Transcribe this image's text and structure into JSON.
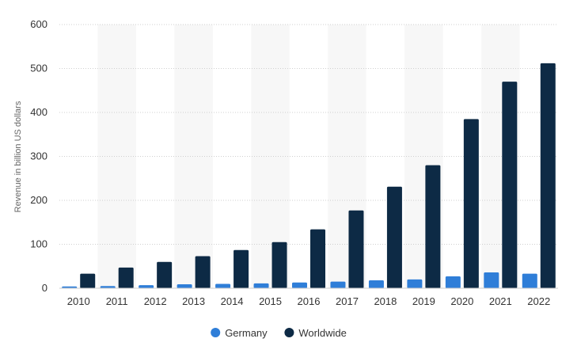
{
  "chart_data": {
    "type": "bar",
    "categories": [
      "2010",
      "2011",
      "2012",
      "2013",
      "2014",
      "2015",
      "2016",
      "2017",
      "2018",
      "2019",
      "2020",
      "2021",
      "2022"
    ],
    "series": [
      {
        "name": "Germany",
        "color": "#2f7ed8",
        "values": [
          4,
          5,
          7,
          9,
          10,
          11,
          13,
          15,
          18,
          20,
          27,
          36,
          33
        ]
      },
      {
        "name": "Worldwide",
        "color": "#0d2a45",
        "values": [
          33,
          47,
          60,
          73,
          87,
          105,
          134,
          177,
          231,
          280,
          385,
          470,
          512
        ]
      }
    ],
    "ylabel": "Revenue in billion US dollars",
    "ylim": [
      0,
      600
    ],
    "yticks": [
      0,
      100,
      200,
      300,
      400,
      500,
      600
    ],
    "grid": true,
    "legend_position": "bottom-center"
  }
}
